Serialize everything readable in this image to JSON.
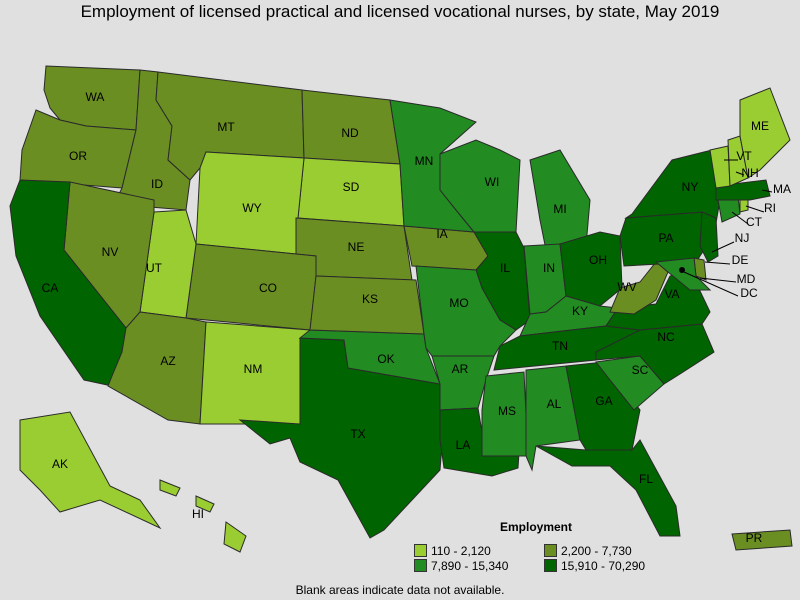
{
  "title": "Employment of licensed practical and licensed vocational nurses, by state, May 2019",
  "legend": {
    "title": "Employment",
    "bins": [
      {
        "label": "110 - 2,120",
        "color": "#9acd32"
      },
      {
        "label": "2,200 - 7,730",
        "color": "#6b8e23"
      },
      {
        "label": "7,890 - 15,340",
        "color": "#228b22"
      },
      {
        "label": "15,910 - 70,290",
        "color": "#006400"
      }
    ]
  },
  "note": "Blank areas indicate data not available.",
  "states": {
    "WA": 1,
    "OR": 1,
    "ID": 1,
    "MT": 1,
    "ND": 1,
    "WY": 0,
    "SD": 0,
    "NE": 1,
    "CO": 1,
    "UT": 0,
    "NV": 1,
    "CA": 3,
    "AZ": 1,
    "NM": 0,
    "TX": 3,
    "OK": 2,
    "KS": 1,
    "IA": 1,
    "MN": 2,
    "WI": 2,
    "MI": 2,
    "IL": 3,
    "IN": 2,
    "OH": 3,
    "KY": 2,
    "TN": 3,
    "MO": 2,
    "AR": 2,
    "LA": 3,
    "MS": 2,
    "AL": 2,
    "GA": 3,
    "FL": 3,
    "SC": 2,
    "NC": 3,
    "VA": 3,
    "WV": 1,
    "PA": 3,
    "NY": 3,
    "NJ": 3,
    "DE": 1,
    "MD": 2,
    "DC": 1,
    "CT": 2,
    "RI": 0,
    "MA": 3,
    "VT": 0,
    "NH": 0,
    "ME": 0,
    "AK": 0,
    "HI": 0,
    "PR": 1
  },
  "labels": [
    "WA",
    "OR",
    "ID",
    "MT",
    "ND",
    "WY",
    "SD",
    "NE",
    "CO",
    "UT",
    "NV",
    "CA",
    "AZ",
    "NM",
    "TX",
    "OK",
    "KS",
    "IA",
    "MN",
    "WI",
    "MI",
    "IL",
    "IN",
    "OH",
    "KY",
    "TN",
    "MO",
    "AR",
    "LA",
    "MS",
    "AL",
    "GA",
    "FL",
    "SC",
    "NC",
    "VA",
    "WV",
    "PA",
    "NY",
    "NJ",
    "DE",
    "MD",
    "DC",
    "CT",
    "RI",
    "MA",
    "VT",
    "NH",
    "ME",
    "AK",
    "HI",
    "PR"
  ]
}
